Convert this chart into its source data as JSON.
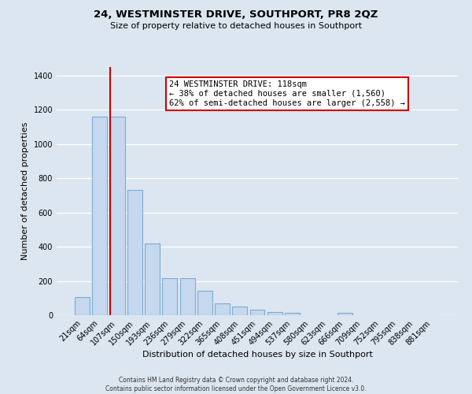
{
  "title": "24, WESTMINSTER DRIVE, SOUTHPORT, PR8 2QZ",
  "subtitle": "Size of property relative to detached houses in Southport",
  "xlabel": "Distribution of detached houses by size in Southport",
  "ylabel": "Number of detached properties",
  "bar_labels": [
    "21sqm",
    "64sqm",
    "107sqm",
    "150sqm",
    "193sqm",
    "236sqm",
    "279sqm",
    "322sqm",
    "365sqm",
    "408sqm",
    "451sqm",
    "494sqm",
    "537sqm",
    "580sqm",
    "623sqm",
    "666sqm",
    "709sqm",
    "752sqm",
    "795sqm",
    "838sqm",
    "881sqm"
  ],
  "bar_values": [
    105,
    1160,
    1160,
    730,
    420,
    218,
    218,
    145,
    70,
    50,
    32,
    20,
    15,
    0,
    0,
    12,
    0,
    0,
    0,
    0,
    0
  ],
  "bar_color": "#c5d8ee",
  "bar_edge_color": "#7aadd4",
  "property_line_label": "24 WESTMINSTER DRIVE: 118sqm",
  "annotation_line1": "← 38% of detached houses are smaller (1,560)",
  "annotation_line2": "62% of semi-detached houses are larger (2,558) →",
  "annotation_box_color": "#ffffff",
  "annotation_box_edge": "#cc0000",
  "vline_color": "#cc0000",
  "vline_x_index": 2.0,
  "ylim": [
    0,
    1450
  ],
  "yticks": [
    0,
    200,
    400,
    600,
    800,
    1000,
    1200,
    1400
  ],
  "plot_bg_color": "#dce6f0",
  "fig_bg_color": "#dce6f0",
  "footer_line1": "Contains HM Land Registry data © Crown copyright and database right 2024.",
  "footer_line2": "Contains public sector information licensed under the Open Government Licence v3.0."
}
